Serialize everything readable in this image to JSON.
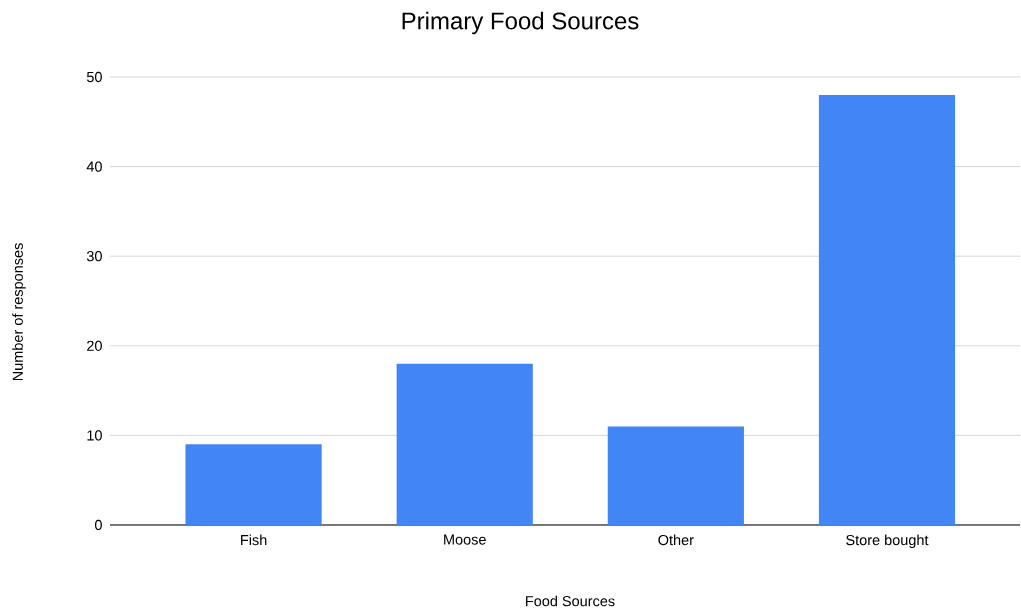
{
  "chart_data": {
    "type": "bar",
    "title": "Primary Food Sources",
    "xlabel": "Food Sources",
    "ylabel": "Number of responses",
    "categories": [
      "Fish",
      "Moose",
      "Other",
      "Store bought"
    ],
    "values": [
      9,
      18,
      11,
      48
    ],
    "color": "#4285f4",
    "ylim": [
      0,
      50
    ],
    "yticks": [
      0,
      10,
      20,
      30,
      40,
      50
    ],
    "grid": "y"
  }
}
